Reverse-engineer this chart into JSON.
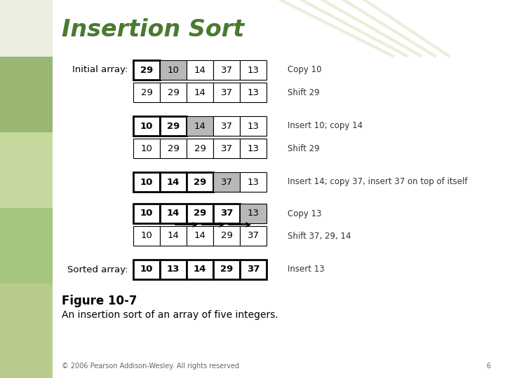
{
  "title": "Insertion Sort",
  "title_color": "#4a7a30",
  "figure_label": "Figure 10-7",
  "figure_caption": "An insertion sort of an array of five integers.",
  "copyright": "© 2006 Pearson Addison-Wesley. All rights reserved",
  "page_number": "6",
  "rows": [
    {
      "label": "Initial array:",
      "values": [
        29,
        10,
        14,
        37,
        13
      ],
      "bold": [
        true,
        false,
        false,
        false,
        false
      ],
      "gray": [
        false,
        true,
        false,
        false,
        false
      ],
      "thick_border": [
        true,
        false,
        false,
        false,
        false
      ],
      "comment": "Copy 10"
    },
    {
      "label": "",
      "values": [
        29,
        29,
        14,
        37,
        13
      ],
      "bold": [
        false,
        false,
        false,
        false,
        false
      ],
      "gray": [
        false,
        false,
        false,
        false,
        false
      ],
      "thick_border": [
        false,
        false,
        false,
        false,
        false
      ],
      "comment": "Shift 29"
    },
    {
      "label": "",
      "values": [
        10,
        29,
        14,
        37,
        13
      ],
      "bold": [
        true,
        true,
        false,
        false,
        false
      ],
      "gray": [
        false,
        false,
        true,
        false,
        false
      ],
      "thick_border": [
        true,
        true,
        false,
        false,
        false
      ],
      "comment": "Insert 10; copy 14"
    },
    {
      "label": "",
      "values": [
        10,
        29,
        29,
        37,
        13
      ],
      "bold": [
        false,
        false,
        false,
        false,
        false
      ],
      "gray": [
        false,
        false,
        false,
        false,
        false
      ],
      "thick_border": [
        false,
        false,
        false,
        false,
        false
      ],
      "comment": "Shift 29"
    },
    {
      "label": "",
      "values": [
        10,
        14,
        29,
        37,
        13
      ],
      "bold": [
        true,
        true,
        true,
        false,
        false
      ],
      "gray": [
        false,
        false,
        false,
        true,
        false
      ],
      "thick_border": [
        true,
        true,
        true,
        false,
        false
      ],
      "comment": "Insert 14; copy 37, insert 37 on top of itself"
    },
    {
      "label": "",
      "values": [
        10,
        14,
        29,
        37,
        13
      ],
      "bold": [
        true,
        true,
        true,
        true,
        false
      ],
      "gray": [
        false,
        false,
        false,
        false,
        true
      ],
      "thick_border": [
        true,
        true,
        true,
        true,
        false
      ],
      "comment": "Copy 13"
    },
    {
      "label": "",
      "values": [
        10,
        14,
        14,
        29,
        37
      ],
      "bold": [
        false,
        false,
        false,
        false,
        false
      ],
      "gray": [
        false,
        false,
        false,
        false,
        false
      ],
      "thick_border": [
        false,
        false,
        false,
        false,
        false
      ],
      "comment": "Shift 37, 29, 14"
    },
    {
      "label": "Sorted array:",
      "values": [
        10,
        13,
        14,
        29,
        37
      ],
      "bold": [
        true,
        true,
        true,
        true,
        true
      ],
      "gray": [
        false,
        false,
        false,
        false,
        false
      ],
      "thick_border": [
        true,
        true,
        true,
        true,
        true
      ],
      "comment": "Insert 13"
    }
  ],
  "bg_color": "#ffffff",
  "gray_color": "#b8b8b8",
  "border_color": "#000000",
  "text_color": "#000000",
  "comment_color": "#333333"
}
